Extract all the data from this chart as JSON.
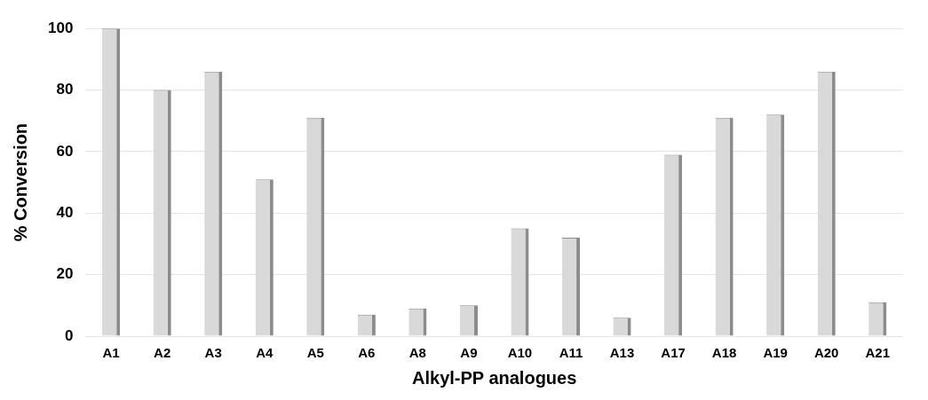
{
  "chart_data": {
    "type": "bar",
    "xlabel": "Alkyl-PP analogues",
    "ylabel": "% Conversion",
    "categories": [
      "A1",
      "A2",
      "A3",
      "A4",
      "A5",
      "A6",
      "A8",
      "A9",
      "A10",
      "A11",
      "A13",
      "A17",
      "A18",
      "A19",
      "A20",
      "A21"
    ],
    "values": [
      100,
      80,
      86,
      51,
      71,
      7,
      9,
      10,
      35,
      32,
      6,
      59,
      71,
      72,
      86,
      11
    ],
    "color": "#d9d9d9",
    "ylim": [
      0,
      100
    ],
    "yticks": [
      0,
      20,
      40,
      60,
      80,
      100
    ],
    "grid": "y",
    "legend": false
  }
}
